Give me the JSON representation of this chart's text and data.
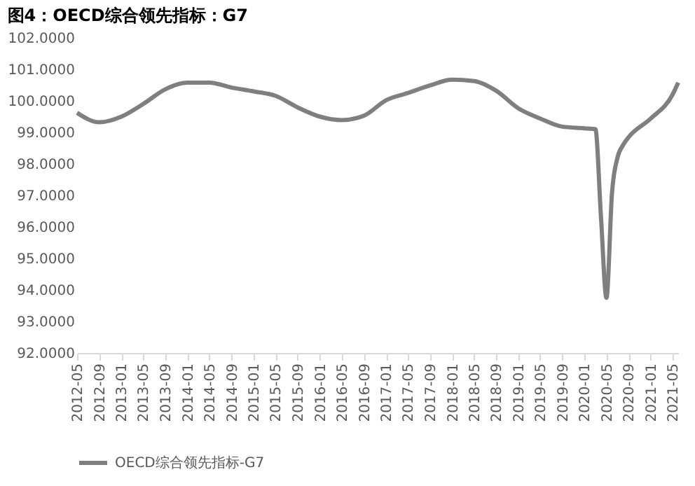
{
  "chart_data": {
    "type": "line",
    "title": "图4：OECD综合领先指标：G7",
    "x": [
      "2012-05",
      "2012-09",
      "2013-01",
      "2013-05",
      "2013-09",
      "2014-01",
      "2014-05",
      "2014-09",
      "2015-01",
      "2015-05",
      "2015-09",
      "2016-01",
      "2016-05",
      "2016-09",
      "2017-01",
      "2017-05",
      "2017-09",
      "2018-01",
      "2018-05",
      "2018-09",
      "2019-01",
      "2019-05",
      "2019-09",
      "2020-01",
      "2020-03",
      "2020-04",
      "2020-05",
      "2020-06",
      "2020-07",
      "2020-08",
      "2020-09",
      "2021-01",
      "2021-05",
      "2021-06"
    ],
    "series": [
      {
        "name": "OECD综合领先指标-G7",
        "color": "#7f7f7f",
        "values": [
          99.62,
          99.32,
          99.5,
          99.9,
          100.37,
          100.58,
          100.58,
          100.42,
          100.3,
          100.16,
          99.79,
          99.5,
          99.39,
          99.53,
          100.02,
          100.25,
          100.49,
          100.67,
          100.63,
          100.32,
          99.76,
          99.44,
          99.18,
          99.13,
          99.1,
          96.3,
          93.75,
          97.1,
          98.2,
          98.6,
          98.85,
          99.44,
          100.2,
          100.58
        ]
      }
    ],
    "xlim": [
      "2012-05",
      "2021-06"
    ],
    "xticks": [
      "2012-05",
      "2012-09",
      "2013-01",
      "2013-05",
      "2013-09",
      "2014-01",
      "2014-05",
      "2014-09",
      "2015-01",
      "2015-05",
      "2015-09",
      "2016-01",
      "2016-05",
      "2016-09",
      "2017-01",
      "2017-05",
      "2017-09",
      "2018-01",
      "2018-05",
      "2018-09",
      "2019-01",
      "2019-05",
      "2019-09",
      "2020-01",
      "2020-05",
      "2020-09",
      "2021-01",
      "2021-05"
    ],
    "ylim": [
      92,
      102
    ],
    "yticks": [
      {
        "value": 92,
        "label": "92.0000"
      },
      {
        "value": 93,
        "label": "93.0000"
      },
      {
        "value": 94,
        "label": "94.0000"
      },
      {
        "value": 95,
        "label": "95.0000"
      },
      {
        "value": 96,
        "label": "96.0000"
      },
      {
        "value": 97,
        "label": "97.0000"
      },
      {
        "value": 98,
        "label": "98.0000"
      },
      {
        "value": 99,
        "label": "99.0000"
      },
      {
        "value": 100,
        "label": "100.0000"
      },
      {
        "value": 101,
        "label": "101.0000"
      },
      {
        "value": 102,
        "label": "102.0000"
      }
    ],
    "grid": false,
    "legend": "bottom",
    "marker": "none",
    "line_style": "solid"
  }
}
